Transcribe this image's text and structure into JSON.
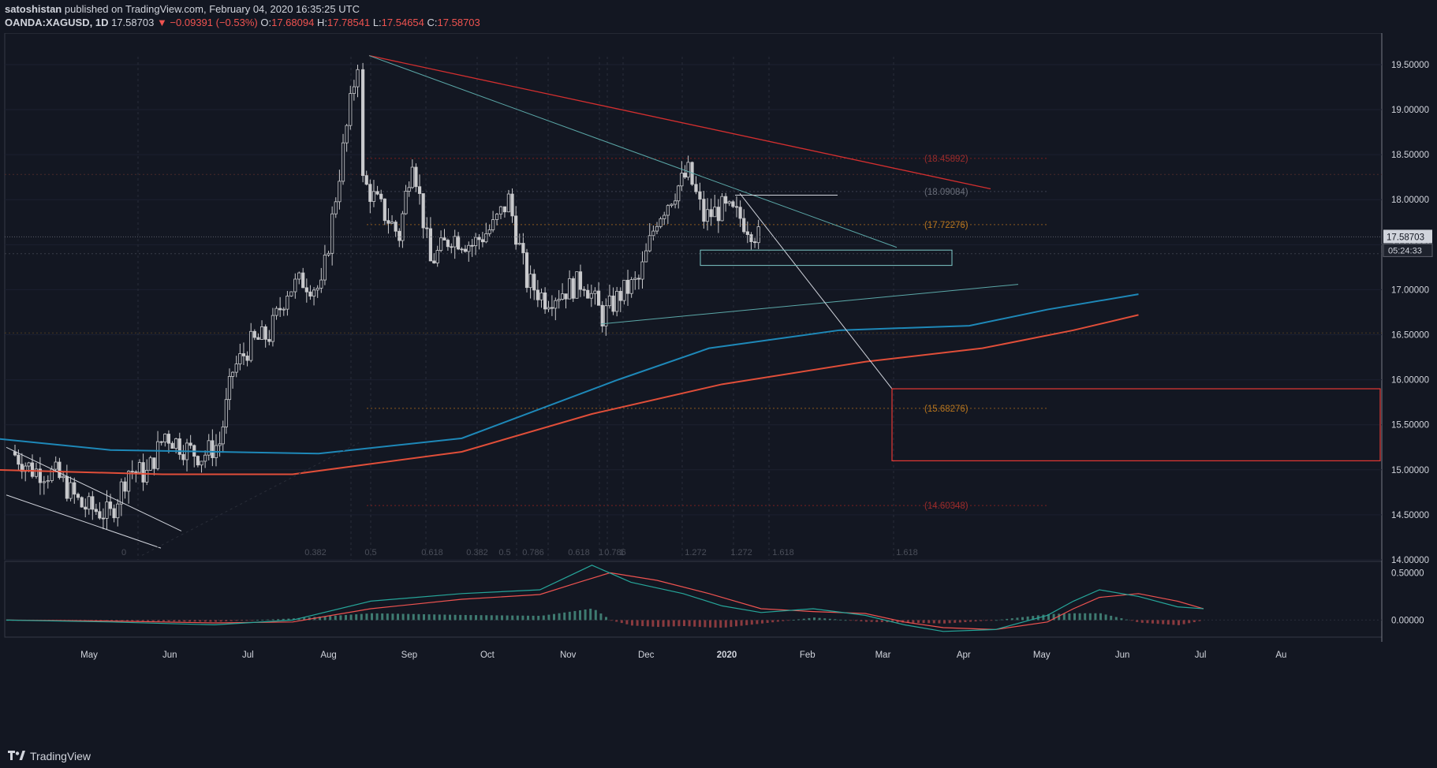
{
  "header": {
    "author": "satoshistan",
    "published_text": "published on TradingView.com, February 04, 2020 16:35:25 UTC",
    "symbol": "OANDA:XAGUSD, 1D",
    "last": "17.58703",
    "change": "▼ −0.09391 (−0.53%)",
    "o_label": "O:",
    "o": "17.68094",
    "h_label": "H:",
    "h": "17.78541",
    "l_label": "L:",
    "l": "17.54654",
    "c_label": "C:",
    "c": "17.58703"
  },
  "footer": {
    "brand": "TradingView",
    "icon": "tradingview-logo-icon"
  },
  "colors": {
    "background": "#131722",
    "candle": "#c8c9cc",
    "ma_blue": "#1e88b8",
    "ma_red": "#e04e39",
    "trend_red": "#d32f2f",
    "trend_teal": "#5ba8a8",
    "fib_orange": "#c77d2c",
    "fib_red": "#b71c1c",
    "macd_line": "#26a69a",
    "signal_line": "#ef5350"
  },
  "chart_data": {
    "type": "candlestick",
    "title": "OANDA:XAGUSD, 1D",
    "x_labels": [
      "May",
      "Jun",
      "Jul",
      "Aug",
      "Sep",
      "Oct",
      "Nov",
      "Dec",
      "2020",
      "Feb",
      "Mar",
      "Apr",
      "May",
      "Jun",
      "Jul",
      "Au"
    ],
    "y_ticks": [
      "19.50000",
      "19.00000",
      "18.50000",
      "18.00000",
      "17.50000",
      "17.00000",
      "16.50000",
      "16.00000",
      "15.50000",
      "15.00000",
      "14.50000",
      "14.00000"
    ],
    "ylim": [
      14.0,
      19.85
    ],
    "current_price_label": "17.58703",
    "countdown_label": "05:24:33",
    "fib_levels": [
      {
        "label": "(18.45892)",
        "value": 18.45892
      },
      {
        "label": "(18.09084)",
        "value": 18.09084
      },
      {
        "label": "(17.72276)",
        "value": 17.72276
      },
      {
        "label": "(15.68276)",
        "value": 15.68276
      },
      {
        "label": "(14.60348)",
        "value": 14.60348
      }
    ],
    "fib_ratio_labels": [
      "0",
      "0.382",
      "0.5",
      "0.618",
      "0.382",
      "0.5",
      "0.786",
      "0.618",
      "0.786",
      "1",
      "1",
      "1.272",
      "1.272",
      "1.618",
      "1.618"
    ],
    "close_path": [
      [
        "2019-04-23",
        15.2
      ],
      [
        "2019-05-01",
        15.0
      ],
      [
        "2019-05-10",
        14.95
      ],
      [
        "2019-05-20",
        14.6
      ],
      [
        "2019-05-31",
        14.5
      ],
      [
        "2019-06-07",
        15.0
      ],
      [
        "2019-06-14",
        14.95
      ],
      [
        "2019-06-21",
        15.4
      ],
      [
        "2019-06-28",
        15.25
      ],
      [
        "2019-07-05",
        15.15
      ],
      [
        "2019-07-12",
        15.3
      ],
      [
        "2019-07-17",
        16.1
      ],
      [
        "2019-07-24",
        16.4
      ],
      [
        "2019-07-31",
        16.5
      ],
      [
        "2019-08-07",
        17.0
      ],
      [
        "2019-08-13",
        17.1
      ],
      [
        "2019-08-20",
        17.0
      ],
      [
        "2019-08-27",
        18.3
      ],
      [
        "2019-09-03",
        19.55
      ],
      [
        "2019-09-05",
        18.2
      ],
      [
        "2019-09-12",
        17.9
      ],
      [
        "2019-09-19",
        17.6
      ],
      [
        "2019-09-24",
        18.5
      ],
      [
        "2019-10-01",
        17.3
      ],
      [
        "2019-10-09",
        17.6
      ],
      [
        "2019-10-17",
        17.5
      ],
      [
        "2019-10-25",
        17.7
      ],
      [
        "2019-10-31",
        18.0
      ],
      [
        "2019-11-07",
        17.1
      ],
      [
        "2019-11-14",
        16.9
      ],
      [
        "2019-11-22",
        17.0
      ],
      [
        "2019-11-29",
        17.1
      ],
      [
        "2019-12-06",
        16.7
      ],
      [
        "2019-12-13",
        16.95
      ],
      [
        "2019-12-20",
        17.1
      ],
      [
        "2019-12-27",
        17.8
      ],
      [
        "2020-01-03",
        18.1
      ],
      [
        "2020-01-08",
        18.3
      ],
      [
        "2020-01-14",
        17.8
      ],
      [
        "2020-01-21",
        17.9
      ],
      [
        "2020-01-28",
        17.8
      ],
      [
        "2020-02-04",
        17.58703
      ]
    ],
    "series": [
      {
        "name": "MA (blue)",
        "values": [
          [
            -5,
            15.35
          ],
          [
            40,
            15.22
          ],
          [
            120,
            15.18
          ],
          [
            175,
            15.35
          ],
          [
            235,
            16.0
          ],
          [
            270,
            16.35
          ],
          [
            320,
            16.55
          ],
          [
            370,
            16.6
          ],
          [
            400,
            16.78
          ],
          [
            435,
            16.95
          ]
        ]
      },
      {
        "name": "MA (red)",
        "values": [
          [
            -5,
            15.0
          ],
          [
            60,
            14.95
          ],
          [
            110,
            14.95
          ],
          [
            175,
            15.2
          ],
          [
            225,
            15.62
          ],
          [
            275,
            15.95
          ],
          [
            330,
            16.2
          ],
          [
            375,
            16.35
          ],
          [
            410,
            16.55
          ],
          [
            435,
            16.72
          ]
        ]
      }
    ],
    "macd": {
      "y_ticks": [
        "0.50000",
        "0.00000"
      ],
      "ylim": [
        -0.18,
        0.62
      ]
    }
  }
}
